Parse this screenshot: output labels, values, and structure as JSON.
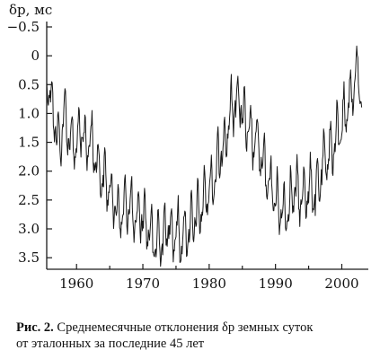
{
  "chart_data": {
    "type": "line",
    "ylabel": "δp, мс",
    "xlabel": "",
    "title": "",
    "x_ticks": [
      1960,
      1970,
      1980,
      1990,
      2000
    ],
    "y_ticks": [
      "−0.5",
      "0",
      "0.5",
      "1.0",
      "1.5",
      "2.0",
      "2.5",
      "3.0",
      "3.5"
    ],
    "y_tick_values": [
      -0.5,
      0,
      0.5,
      1.0,
      1.5,
      2.0,
      2.5,
      3.0,
      3.5
    ],
    "xlim": [
      1955.5,
      2004
    ],
    "ylim": [
      -0.5,
      3.7
    ],
    "y_inverted": true,
    "grid": false,
    "series": [
      {
        "values_note": "monthly mean deviation, ms",
        "x": [
          1955.5,
          1956.0,
          1956.5,
          1957.0,
          1957.5,
          1958.0,
          1958.5,
          1959.0,
          1959.5,
          1960.0,
          1960.5,
          1961.0,
          1961.5,
          1962.0,
          1962.5,
          1963.0,
          1963.5,
          1964.0,
          1964.5,
          1965.0,
          1965.5,
          1966.0,
          1966.5,
          1967.0,
          1967.5,
          1968.0,
          1968.5,
          1969.0,
          1969.5,
          1970.0,
          1970.5,
          1971.0,
          1971.5,
          1972.0,
          1972.5,
          1973.0,
          1973.5,
          1974.0,
          1974.5,
          1975.0,
          1975.5,
          1976.0,
          1976.5,
          1977.0,
          1977.5,
          1978.0,
          1978.5,
          1979.0,
          1979.5,
          1980.0,
          1980.5,
          1981.0,
          1981.5,
          1982.0,
          1982.5,
          1983.0,
          1983.5,
          1984.0,
          1984.5,
          1985.0,
          1985.5,
          1986.0,
          1986.5,
          1987.0,
          1987.5,
          1988.0,
          1988.5,
          1989.0,
          1989.5,
          1990.0,
          1990.5,
          1991.0,
          1991.5,
          1992.0,
          1992.5,
          1993.0,
          1993.5,
          1994.0,
          1994.5,
          1995.0,
          1995.5,
          1996.0,
          1996.5,
          1997.0,
          1997.5,
          1998.0,
          1998.5,
          1999.0,
          1999.5,
          2000.0,
          2000.5,
          2001.0,
          2001.5,
          2002.0,
          2002.5,
          2003.0
        ],
        "y": [
          0.3,
          0.6,
          1.0,
          1.3,
          1.6,
          1.0,
          1.2,
          1.4,
          1.5,
          1.6,
          1.3,
          1.4,
          1.6,
          1.4,
          1.6,
          1.8,
          2.0,
          2.1,
          2.2,
          2.3,
          2.5,
          2.6,
          2.8,
          2.7,
          2.6,
          2.5,
          2.8,
          2.9,
          2.7,
          2.8,
          2.9,
          3.0,
          3.2,
          3.3,
          3.1,
          3.2,
          3.0,
          2.9,
          3.1,
          3.0,
          3.1,
          3.2,
          3.0,
          3.0,
          2.9,
          2.8,
          2.7,
          2.6,
          2.4,
          2.3,
          2.2,
          2.0,
          1.8,
          1.6,
          1.4,
          1.1,
          0.9,
          0.8,
          0.7,
          1.0,
          1.2,
          1.3,
          1.5,
          1.4,
          1.6,
          1.9,
          2.0,
          2.2,
          2.3,
          2.5,
          2.6,
          2.7,
          2.7,
          2.6,
          2.4,
          2.3,
          2.4,
          2.5,
          2.3,
          2.4,
          2.2,
          2.5,
          2.2,
          2.0,
          1.8,
          1.7,
          1.6,
          1.5,
          1.3,
          1.2,
          1.0,
          0.8,
          0.6,
          0.4,
          0.3,
          0.8
        ],
        "amplitude_ms": 0.35
      }
    ]
  },
  "caption": {
    "label": "Рис. 2.",
    "text_line1": " Среднемесячные отклонения δp земных суток",
    "text_line2": "от эталонных за последние 45 лет"
  },
  "colors": {
    "line": "#1a1a1a",
    "axis": "#1a1a1a",
    "background": "#ffffff"
  }
}
